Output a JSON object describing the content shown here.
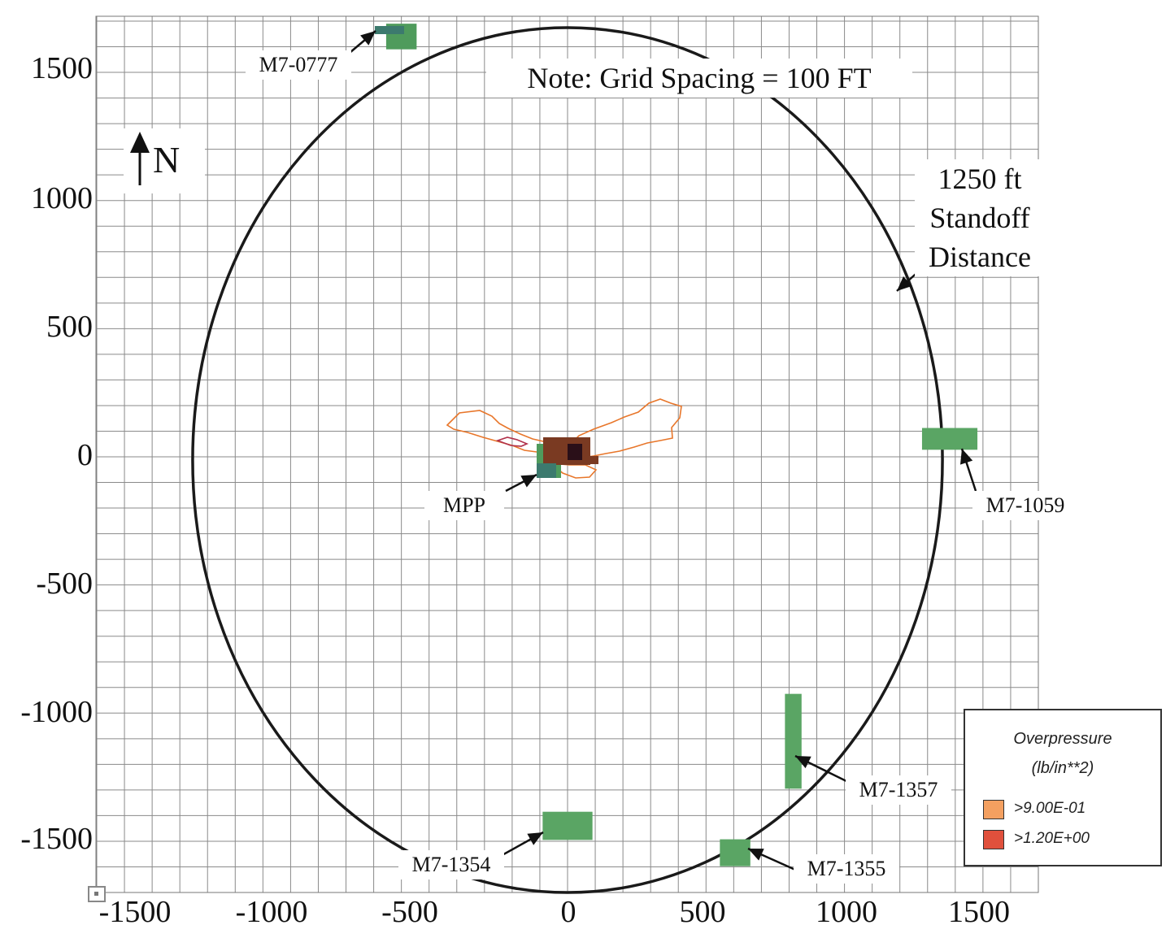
{
  "title_note": "Note:  Grid Spacing = 100 FT",
  "north_label": "N",
  "circle_label": [
    "1250 ft",
    "Standoff",
    "Distance"
  ],
  "axes": {
    "x_ticks": [
      "-1500",
      "-1000",
      "-500",
      "0",
      "500",
      "1000",
      "1500"
    ],
    "y_ticks": [
      "1500",
      "1000",
      "500",
      "0",
      "-500",
      "-1000",
      "-1500"
    ]
  },
  "map_data": {
    "grid_spacing_ft": 100,
    "standoff_radius_ft": 1250,
    "x_range_ft": [
      -1700,
      1700
    ],
    "y_range_ft": [
      -1700,
      1700
    ],
    "buildings": [
      {
        "id": "M7-0777",
        "x": -600,
        "y": 1640,
        "w": 110,
        "h": 100,
        "color": "#4f9b5c"
      },
      {
        "id": "M7-1059",
        "x": 1380,
        "y": 70,
        "w": 200,
        "h": 85,
        "color": "#5aa564"
      },
      {
        "id": "M7-1357",
        "x": 815,
        "y": -1110,
        "w": 60,
        "h": 370,
        "color": "#5aa564"
      },
      {
        "id": "M7-1354",
        "x": 0,
        "y": -1440,
        "w": 180,
        "h": 110,
        "color": "#5aa564"
      },
      {
        "id": "M7-1355",
        "x": 605,
        "y": -1545,
        "w": 110,
        "h": 105,
        "color": "#5aa564"
      }
    ],
    "labels": [
      {
        "id": "M7-0777",
        "text": "M7-0777"
      },
      {
        "id": "M7-1059",
        "text": "M7-1059"
      },
      {
        "id": "M7-1357",
        "text": "M7-1357"
      },
      {
        "id": "M7-1354",
        "text": "M7-1354"
      },
      {
        "id": "M7-1355",
        "text": "M7-1355"
      },
      {
        "id": "MPP",
        "text": "MPP"
      }
    ]
  },
  "legend": {
    "title_line1": "Overpressure",
    "title_line2": "(lb/in**2)",
    "items": [
      {
        "label": ">9.00E-01",
        "color": "#f4a060"
      },
      {
        "label": ">1.20E+00",
        "color": "#e0503c"
      }
    ]
  },
  "colors": {
    "grid": "#8a8a8a",
    "circle": "#1a1a1a",
    "contour": "#e8762a",
    "structure": "#7a3a22"
  }
}
